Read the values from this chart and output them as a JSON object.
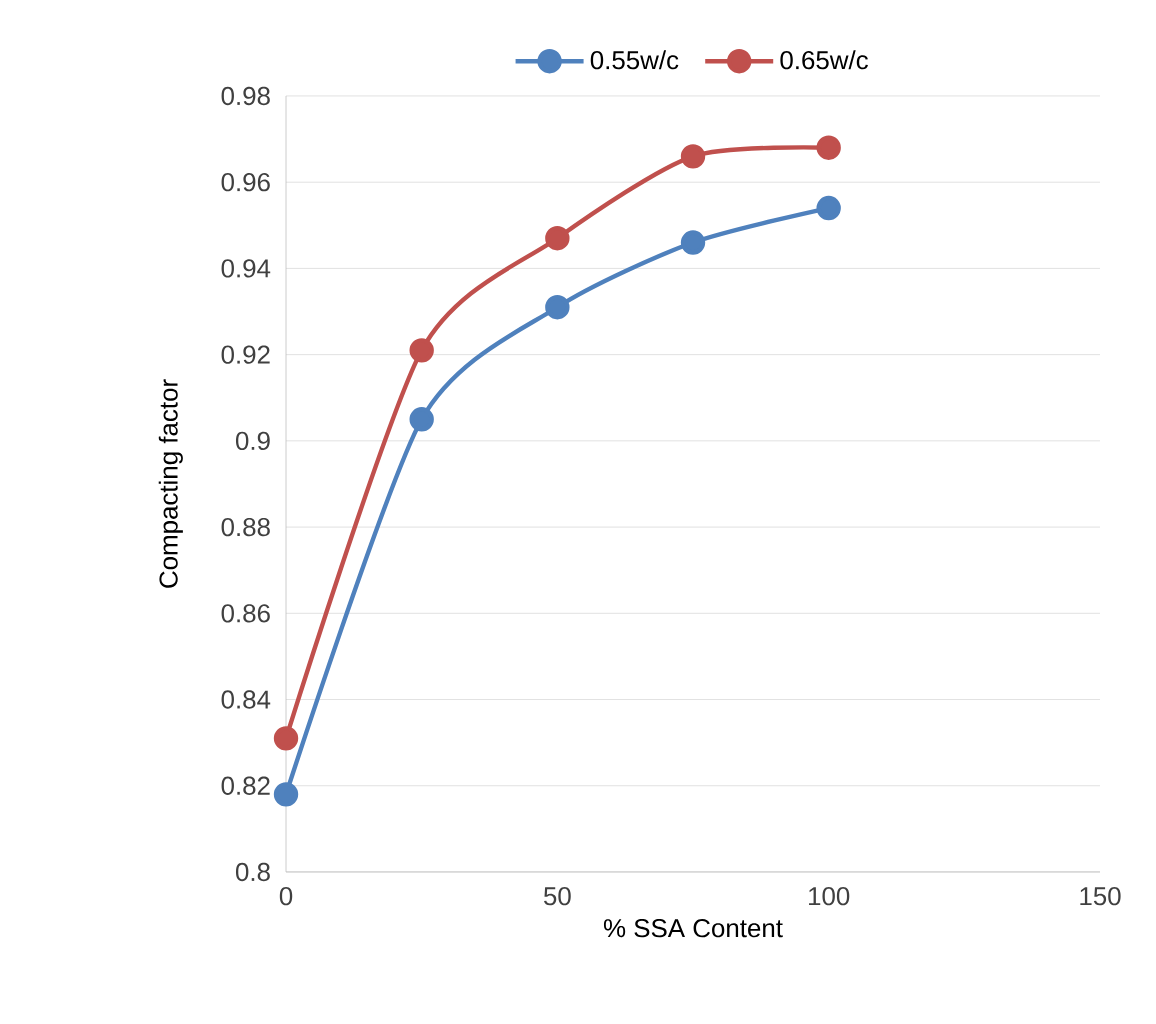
{
  "chart_data": {
    "type": "line",
    "xlabel": "% SSA Content",
    "ylabel": "Compacting factor",
    "x": [
      0,
      25,
      50,
      75,
      100
    ],
    "series": [
      {
        "name": "0.55w/c",
        "color": "#4f81bd",
        "values": [
          0.818,
          0.905,
          0.931,
          0.946,
          0.954
        ]
      },
      {
        "name": "0.65w/c",
        "color": "#c0504d",
        "values": [
          0.831,
          0.921,
          0.947,
          0.966,
          0.968
        ]
      }
    ],
    "xlim": [
      0,
      150
    ],
    "xticks": [
      0,
      50,
      100,
      150
    ],
    "ylim": [
      0.8,
      0.98
    ],
    "yticks": [
      0.8,
      0.82,
      0.84,
      0.86,
      0.88,
      0.9,
      0.92,
      0.94,
      0.96,
      0.98
    ],
    "grid": "y",
    "legend": "top",
    "marker": "circle",
    "line_style": "solid"
  }
}
